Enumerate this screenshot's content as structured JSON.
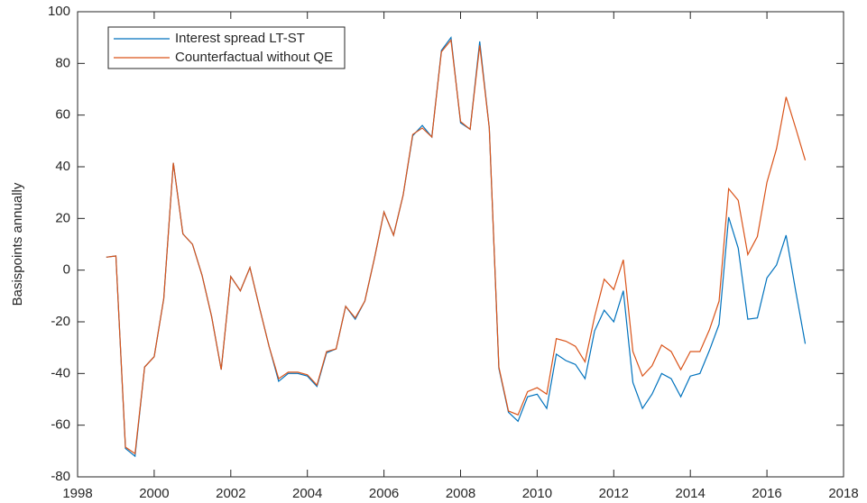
{
  "chart_data": {
    "type": "line",
    "ylabel": "Basispoints annually",
    "x": [
      1998.75,
      1999,
      1999.25,
      1999.5,
      1999.75,
      2000,
      2000.25,
      2000.5,
      2000.75,
      2001,
      2001.25,
      2001.5,
      2001.75,
      2002,
      2002.25,
      2002.5,
      2002.75,
      2003,
      2003.25,
      2003.5,
      2003.75,
      2004,
      2004.25,
      2004.5,
      2004.75,
      2005,
      2005.25,
      2005.5,
      2005.75,
      2006,
      2006.25,
      2006.5,
      2006.75,
      2007,
      2007.25,
      2007.5,
      2007.75,
      2008,
      2008.25,
      2008.5,
      2008.75,
      2009,
      2009.25,
      2009.5,
      2009.75,
      2010,
      2010.25,
      2010.5,
      2010.75,
      2011,
      2011.25,
      2011.5,
      2011.75,
      2012,
      2012.25,
      2012.5,
      2012.75,
      2013,
      2013.25,
      2013.5,
      2013.75,
      2014,
      2014.25,
      2014.5,
      2014.75,
      2015,
      2015.25,
      2015.5,
      2015.75,
      2016,
      2016.25,
      2016.5,
      2016.75,
      2017
    ],
    "series": [
      {
        "name": "Interest spread LT-ST",
        "color": "#0072bd",
        "values": [
          5,
          5.5,
          -69,
          -72,
          -37.5,
          -33.5,
          -11,
          41.5,
          14,
          10,
          -2,
          -18,
          -38.5,
          -2.5,
          -8,
          1,
          -14.5,
          -29.5,
          -43,
          -40,
          -40,
          -41,
          -45,
          -32,
          -30.5,
          -14,
          -19,
          -12,
          4.5,
          22.5,
          13.5,
          29,
          52,
          56,
          51.5,
          85,
          90,
          57,
          54.5,
          88.5,
          55,
          -38,
          -55,
          -58.5,
          -49,
          -48,
          -53.5,
          -32.5,
          -35,
          -36.5,
          -42,
          -23.5,
          -15.5,
          -20,
          -8,
          -43.5,
          -53.5,
          -48,
          -40,
          -42,
          -49,
          -41,
          -40,
          -31,
          -21,
          20.5,
          8.5,
          -19,
          -18.5,
          -3,
          2,
          13.5,
          -8,
          -28.5
        ]
      },
      {
        "name": "Counterfactual without QE",
        "color": "#d95319",
        "values": [
          5,
          5.5,
          -68.5,
          -71,
          -37.5,
          -33.5,
          -11,
          41.5,
          14,
          10,
          -2,
          -18,
          -38.5,
          -2.5,
          -8,
          1,
          -14.5,
          -29.5,
          -42,
          -39.5,
          -39.5,
          -40.5,
          -44.5,
          -31.5,
          -30.5,
          -14,
          -18.5,
          -12,
          4.5,
          22.5,
          13.5,
          29,
          52.5,
          55,
          51.5,
          84.5,
          89,
          57.5,
          54.5,
          87,
          55,
          -37.5,
          -54.5,
          -56,
          -47,
          -45.5,
          -48,
          -26.5,
          -27.5,
          -29.5,
          -35.5,
          -18,
          -3.5,
          -7.5,
          4,
          -31.5,
          -41,
          -37,
          -29,
          -31.5,
          -38.5,
          -31.5,
          -31.5,
          -23,
          -12,
          31.5,
          27,
          6,
          13,
          34,
          47,
          67,
          55,
          42.5
        ]
      }
    ],
    "xlim": [
      1998,
      2018
    ],
    "xticks": [
      1998,
      2000,
      2002,
      2004,
      2006,
      2008,
      2010,
      2012,
      2014,
      2016,
      2018
    ],
    "ylim": [
      -80,
      100
    ],
    "yticks": [
      -80,
      -60,
      -40,
      -20,
      0,
      20,
      40,
      60,
      80,
      100
    ],
    "legend": "upper left",
    "grid": false
  }
}
